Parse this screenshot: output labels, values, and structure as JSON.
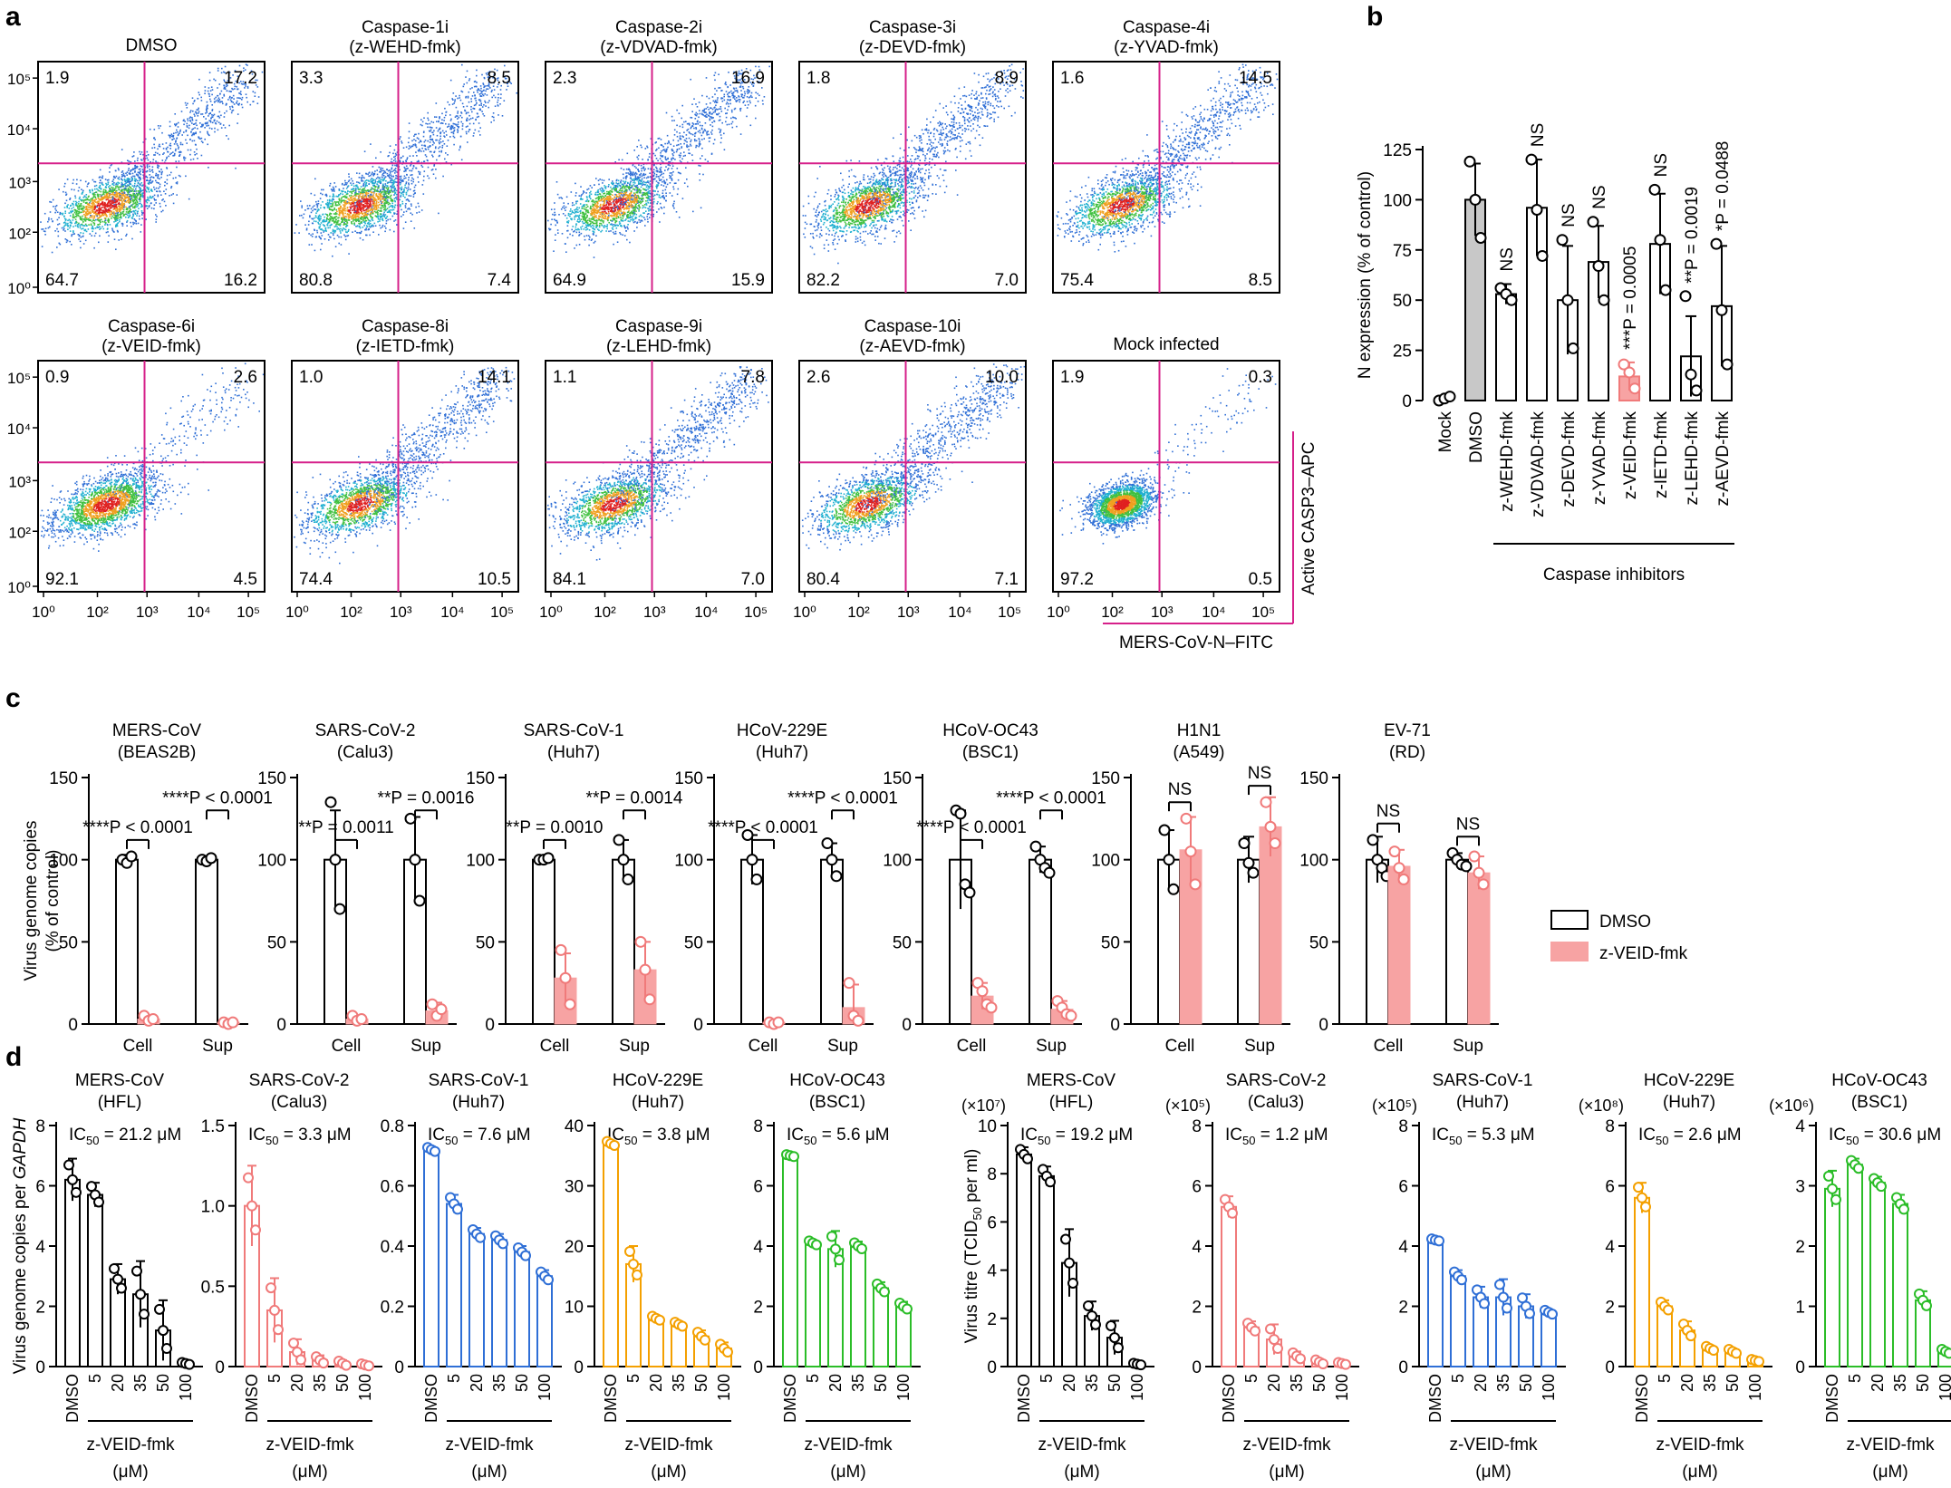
{
  "colors": {
    "black": "#000000",
    "pink": "#f07a7a",
    "pinkFill": "#f7a3a3",
    "blue": "#2f6fd6",
    "orange": "#f4a000",
    "green": "#2bbd28",
    "magenta": "#d6208a",
    "grey": "#c8c8c8"
  },
  "panels": {
    "a": "a",
    "b": "b",
    "c": "c",
    "d": "d"
  },
  "chart_data": [
    {
      "type": "scatter",
      "panel": "a",
      "xlabel": "MERS-CoV-N–FITC",
      "ylabel": "Active CASP3–APC",
      "x_ticks": [
        "10⁰",
        "10²",
        "10³",
        "10⁴",
        "10⁵"
      ],
      "y_ticks": [
        "10⁰",
        "10²",
        "10³",
        "10⁴",
        "10⁵"
      ],
      "plots": [
        {
          "title": "DMSO",
          "sub": "",
          "tl": "1.9",
          "tr": "17.2",
          "bl": "64.7",
          "br": "16.2"
        },
        {
          "title": "Caspase-1i",
          "sub": "(z-WEHD-fmk)",
          "tl": "3.3",
          "tr": "8.5",
          "bl": "80.8",
          "br": "7.4"
        },
        {
          "title": "Caspase-2i",
          "sub": "(z-VDVAD-fmk)",
          "tl": "2.3",
          "tr": "16.9",
          "bl": "64.9",
          "br": "15.9"
        },
        {
          "title": "Caspase-3i",
          "sub": "(z-DEVD-fmk)",
          "tl": "1.8",
          "tr": "8.9",
          "bl": "82.2",
          "br": "7.0"
        },
        {
          "title": "Caspase-4i",
          "sub": "(z-YVAD-fmk)",
          "tl": "1.6",
          "tr": "14.5",
          "bl": "75.4",
          "br": "8.5"
        },
        {
          "title": "Caspase-6i",
          "sub": "(z-VEID-fmk)",
          "tl": "0.9",
          "tr": "2.6",
          "bl": "92.1",
          "br": "4.5"
        },
        {
          "title": "Caspase-8i",
          "sub": "(z-IETD-fmk)",
          "tl": "1.0",
          "tr": "14.1",
          "bl": "74.4",
          "br": "10.5"
        },
        {
          "title": "Caspase-9i",
          "sub": "(z-LEHD-fmk)",
          "tl": "1.1",
          "tr": "7.8",
          "bl": "84.1",
          "br": "7.0"
        },
        {
          "title": "Caspase-10i",
          "sub": "(z-AEVD-fmk)",
          "tl": "2.6",
          "tr": "10.0",
          "bl": "80.4",
          "br": "7.1"
        },
        {
          "title": "Mock infected",
          "sub": "",
          "tl": "1.9",
          "tr": "0.3",
          "bl": "97.2",
          "br": "0.5"
        }
      ]
    },
    {
      "type": "bar",
      "panel": "b",
      "ylabel": "N expression (% of control)",
      "ylim": [
        0,
        125
      ],
      "y_ticks": [
        "0",
        "25",
        "50",
        "75",
        "100",
        "125"
      ],
      "categories": [
        "Mock",
        "DMSO",
        "z-WEHD-fmk",
        "z-VDVAD-fmk",
        "z-DEVD-fmk",
        "z-YVAD-fmk",
        "z-VEID-fmk",
        "z-IETD-fmk",
        "z-LEHD-fmk",
        "z-AEVD-fmk"
      ],
      "values": [
        1,
        100,
        53,
        96,
        50,
        69,
        12,
        78,
        22,
        47
      ],
      "err": [
        1,
        18,
        5,
        24,
        27,
        18,
        7,
        25,
        20,
        30
      ],
      "points": [
        [
          0,
          1,
          2
        ],
        [
          119,
          100,
          81
        ],
        [
          56,
          53,
          50
        ],
        [
          120,
          95,
          72
        ],
        [
          80,
          50,
          26
        ],
        [
          89,
          67,
          50
        ],
        [
          18,
          14,
          6
        ],
        [
          105,
          80,
          55
        ],
        [
          52,
          13,
          5
        ],
        [
          78,
          45,
          18
        ]
      ],
      "stats": [
        "",
        "",
        "NS",
        "NS",
        "NS",
        "NS",
        "***P = 0.0005",
        "NS",
        "**P = 0.0019",
        "*P = 0.0488"
      ],
      "group_label": "Caspase inhibitors"
    },
    {
      "type": "bar",
      "panel": "c",
      "ylabel": "Virus genome copies (% of control)",
      "ylim": [
        0,
        150
      ],
      "y_ticks": [
        "0",
        "50",
        "100",
        "150"
      ],
      "categories": [
        "Cell",
        "Sup"
      ],
      "legend": [
        "DMSO",
        "z-VEID-fmk"
      ],
      "plots": [
        {
          "title": "MERS-CoV",
          "sub": "(BEAS2B)",
          "dmso": [
            100,
            100
          ],
          "veid": [
            3,
            1
          ],
          "dmso_err": [
            3,
            2
          ],
          "veid_err": [
            2,
            1
          ],
          "dmso_pts": [
            [
              100,
              98,
              102
            ],
            [
              100,
              99,
              101
            ]
          ],
          "veid_pts": [
            [
              5,
              2,
              3
            ],
            [
              1,
              0,
              1
            ]
          ],
          "stat_cell": "****P < 0.0001",
          "stat_sup": "****P < 0.0001"
        },
        {
          "title": "SARS-CoV-2",
          "sub": "(Calu3)",
          "dmso": [
            100,
            100
          ],
          "veid": [
            3,
            8
          ],
          "dmso_err": [
            30,
            26
          ],
          "veid_err": [
            2,
            5
          ],
          "dmso_pts": [
            [
              135,
              100,
              70
            ],
            [
              125,
              100,
              75
            ]
          ],
          "veid_pts": [
            [
              5,
              2,
              3
            ],
            [
              12,
              5,
              9
            ]
          ],
          "stat_cell": "**P = 0.0011",
          "stat_sup": "**P = 0.0016"
        },
        {
          "title": "SARS-CoV-1",
          "sub": "(Huh7)",
          "dmso": [
            100,
            100
          ],
          "veid": [
            28,
            33
          ],
          "dmso_err": [
            1,
            12
          ],
          "veid_err": [
            15,
            17
          ],
          "dmso_pts": [
            [
              100,
              100,
              101
            ],
            [
              112,
              100,
              88
            ]
          ],
          "veid_pts": [
            [
              45,
              28,
              12
            ],
            [
              50,
              33,
              15
            ]
          ],
          "stat_cell": "**P = 0.0010",
          "stat_sup": "**P = 0.0014"
        },
        {
          "title": "HCoV-229E",
          "sub": "(Huh7)",
          "dmso": [
            100,
            100
          ],
          "veid": [
            1,
            10
          ],
          "dmso_err": [
            15,
            10
          ],
          "veid_err": [
            1,
            14
          ],
          "dmso_pts": [
            [
              115,
              100,
              88
            ],
            [
              110,
              100,
              90
            ]
          ],
          "veid_pts": [
            [
              1,
              0,
              1
            ],
            [
              25,
              5,
              2
            ]
          ],
          "stat_cell": "****P < 0.0001",
          "stat_sup": "****P < 0.0001"
        },
        {
          "title": "HCoV-OC43",
          "sub": "(BSC1)",
          "dmso": [
            100,
            100
          ],
          "veid": [
            17,
            9
          ],
          "dmso_err": [
            30,
            8
          ],
          "veid_err": [
            8,
            5
          ],
          "dmso_pts": [
            [
              130,
              128,
              85,
              80
            ],
            [
              108,
              100,
              95,
              92
            ]
          ],
          "veid_pts": [
            [
              25,
              20,
              12,
              10
            ],
            [
              14,
              10,
              6,
              5
            ]
          ],
          "stat_cell": "****P < 0.0001",
          "stat_sup": "****P < 0.0001"
        },
        {
          "title": "H1N1",
          "sub": "(A549)",
          "dmso": [
            100,
            100
          ],
          "veid": [
            106,
            120
          ],
          "dmso_err": [
            18,
            14
          ],
          "veid_err": [
            20,
            18
          ],
          "dmso_pts": [
            [
              118,
              100,
              82
            ],
            [
              110,
              98,
              92
            ]
          ],
          "veid_pts": [
            [
              125,
              105,
              85
            ],
            [
              135,
              120,
              110
            ]
          ],
          "stat_cell": "NS",
          "stat_sup": "NS"
        },
        {
          "title": "EV-71",
          "sub": "(RD)",
          "dmso": [
            100,
            100
          ],
          "veid": [
            96,
            92
          ],
          "dmso_err": [
            14,
            4
          ],
          "veid_err": [
            10,
            10
          ],
          "dmso_pts": [
            [
              112,
              100,
              95,
              90
            ],
            [
              104,
              100,
              97,
              96
            ]
          ],
          "veid_pts": [
            [
              105,
              95,
              88
            ],
            [
              102,
              92,
              85
            ]
          ],
          "stat_cell": "NS",
          "stat_sup": "NS"
        }
      ]
    },
    {
      "type": "bar",
      "panel": "d-left",
      "ylabel": "Virus genome copies per",
      "ylabel_italic": "GAPDH",
      "categories": [
        "DMSO",
        "5",
        "20",
        "35",
        "50",
        "100"
      ],
      "xlabel": "z-VEID-fmk",
      "xunit": "(μM)",
      "plots": [
        {
          "title": "MERS-CoV",
          "sub": "(HFL)",
          "ic50": "21.2",
          "color": "black",
          "ymax": 8,
          "y_ticks": [
            "0",
            "2",
            "4",
            "6",
            "8"
          ],
          "values": [
            6.2,
            5.7,
            2.9,
            2.4,
            1.2,
            0.1
          ],
          "err": [
            0.7,
            0.4,
            0.5,
            1.1,
            1.0,
            0.05
          ]
        },
        {
          "title": "SARS-CoV-2",
          "sub": "(Calu3)",
          "ic50": "3.3",
          "color": "pink",
          "ymax": 1.5,
          "y_ticks": [
            "0",
            "0.5",
            "1.0",
            "1.5"
          ],
          "values": [
            1.0,
            0.35,
            0.09,
            0.04,
            0.02,
            0.01
          ],
          "err": [
            0.25,
            0.2,
            0.08,
            0.03,
            0.02,
            0.01
          ]
        },
        {
          "title": "SARS-CoV-1",
          "sub": "(Huh7)",
          "ic50": "7.6",
          "color": "blue",
          "ymax": 0.8,
          "y_ticks": [
            "0",
            "0.2",
            "0.4",
            "0.6",
            "0.8"
          ],
          "values": [
            0.72,
            0.54,
            0.44,
            0.42,
            0.38,
            0.3
          ],
          "err": [
            0.01,
            0.03,
            0.02,
            0.02,
            0.02,
            0.02
          ]
        },
        {
          "title": "HCoV-229E",
          "sub": "(Huh7)",
          "ic50": "3.8",
          "color": "orange",
          "ymax": 40,
          "y_ticks": [
            "0",
            "10",
            "20",
            "30",
            "40"
          ],
          "values": [
            37,
            17,
            8,
            7,
            5,
            3
          ],
          "err": [
            0.5,
            3,
            0.5,
            0.5,
            1,
            1
          ]
        },
        {
          "title": "HCoV-OC43",
          "sub": "(BSC1)",
          "ic50": "5.6",
          "color": "green",
          "ymax": 8,
          "y_ticks": [
            "0",
            "2",
            "4",
            "6",
            "8"
          ],
          "values": [
            7.0,
            4.1,
            3.9,
            4.0,
            2.6,
            2.0
          ],
          "err": [
            0.05,
            0.1,
            0.6,
            0.15,
            0.2,
            0.15
          ]
        }
      ]
    },
    {
      "type": "bar",
      "panel": "d-right",
      "ylabel": "Virus titre (TCID",
      "ylabel_sub": "50",
      "ylabel_tail": " per ml)",
      "categories": [
        "DMSO",
        "5",
        "20",
        "35",
        "50",
        "100"
      ],
      "xlabel": "z-VEID-fmk",
      "xunit": "(μM)",
      "plots": [
        {
          "title": "MERS-CoV",
          "sub": "(HFL)",
          "ic50": "19.2",
          "color": "black",
          "scale": "(×10⁷)",
          "ymax": 10,
          "y_ticks": [
            "0",
            "2",
            "4",
            "6",
            "8",
            "10"
          ],
          "values": [
            8.8,
            7.9,
            4.3,
            2.1,
            1.2,
            0.1
          ],
          "err": [
            0.3,
            0.4,
            1.4,
            0.6,
            0.7,
            0.05
          ]
        },
        {
          "title": "SARS-CoV-2",
          "sub": "(Calu3)",
          "ic50": "1.2",
          "color": "pink",
          "scale": "(×10⁵)",
          "ymax": 8,
          "y_ticks": [
            "0",
            "2",
            "4",
            "6",
            "8"
          ],
          "values": [
            5.3,
            1.3,
            0.9,
            0.35,
            0.15,
            0.1
          ],
          "err": [
            0.35,
            0.2,
            0.5,
            0.15,
            0.1,
            0.05
          ]
        },
        {
          "title": "SARS-CoV-1",
          "sub": "(Huh7)",
          "ic50": "5.3",
          "color": "blue",
          "scale": "(×10⁵)",
          "ymax": 8,
          "y_ticks": [
            "0",
            "2",
            "4",
            "6",
            "8"
          ],
          "values": [
            4.2,
            3.0,
            2.3,
            2.3,
            2.0,
            1.8
          ],
          "err": [
            0.05,
            0.2,
            0.35,
            0.6,
            0.4,
            0.1
          ]
        },
        {
          "title": "HCoV-229E",
          "sub": "(Huh7)",
          "ic50": "2.6",
          "color": "orange",
          "scale": "(×10⁸)",
          "ymax": 8,
          "y_ticks": [
            "0",
            "2",
            "4",
            "6",
            "8"
          ],
          "values": [
            5.6,
            2.0,
            1.2,
            0.6,
            0.5,
            0.2
          ],
          "err": [
            0.5,
            0.2,
            0.3,
            0.1,
            0.1,
            0.05
          ]
        },
        {
          "title": "HCoV-OC43",
          "sub": "(BSC1)",
          "ic50": "30.6",
          "color": "green",
          "scale": "(×10⁶)",
          "ymax": 4,
          "y_ticks": [
            "0",
            "1",
            "2",
            "3",
            "4"
          ],
          "values": [
            2.95,
            3.35,
            3.05,
            2.7,
            1.1,
            0.25
          ],
          "err": [
            0.3,
            0.1,
            0.1,
            0.15,
            0.15,
            0.05
          ]
        }
      ]
    }
  ]
}
